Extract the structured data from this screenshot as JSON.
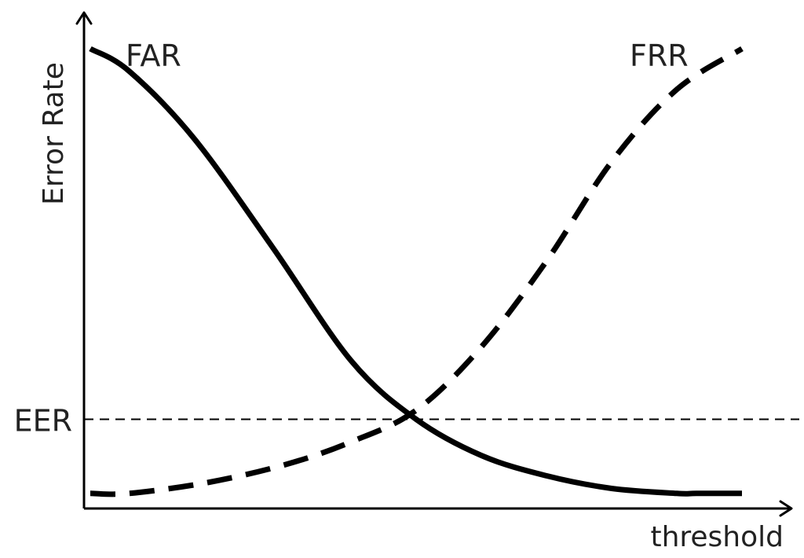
{
  "chart_data": {
    "type": "line",
    "title": "",
    "xlabel": "threshold",
    "ylabel": "Error Rate",
    "xlim": [
      0,
      1
    ],
    "ylim": [
      0,
      1
    ],
    "grid": false,
    "series": [
      {
        "name": "FAR",
        "style": "solid",
        "color": "#000000",
        "x": [
          0,
          0.06,
          0.16,
          0.28,
          0.4,
          0.5,
          0.6,
          0.7,
          0.8,
          0.9,
          0.93,
          1.0
        ],
        "y": [
          1.0,
          0.95,
          0.8,
          0.56,
          0.31,
          0.18,
          0.1,
          0.055,
          0.027,
          0.016,
          0.016,
          0.016
        ]
      },
      {
        "name": "FRR",
        "style": "dashed",
        "color": "#000000",
        "x": [
          0,
          0.06,
          0.18,
          0.3,
          0.4,
          0.5,
          0.6,
          0.7,
          0.8,
          0.9,
          1.0
        ],
        "y": [
          0.016,
          0.016,
          0.04,
          0.08,
          0.13,
          0.2,
          0.34,
          0.53,
          0.75,
          0.91,
          1.0
        ]
      }
    ],
    "annotations": [
      {
        "text": "EER",
        "y": 0.18,
        "type": "horizontal-dashed-line"
      }
    ]
  }
}
